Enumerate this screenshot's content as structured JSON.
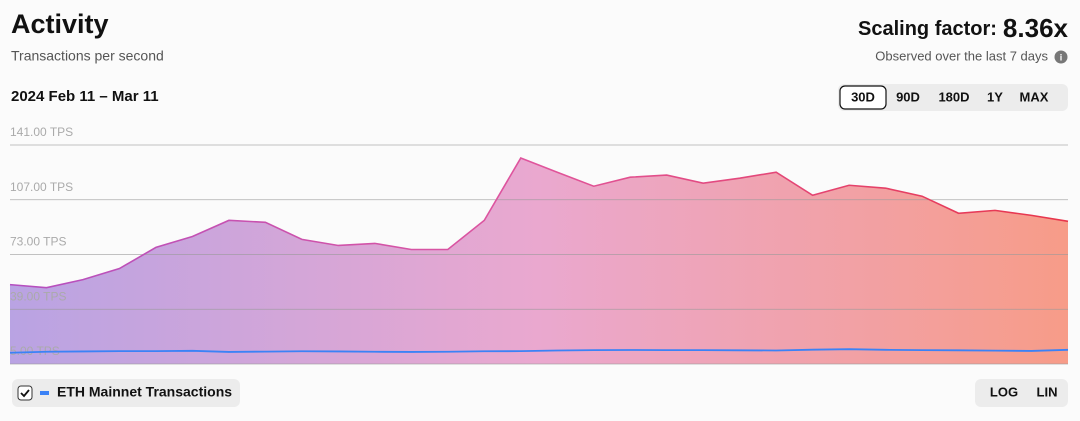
{
  "header": {
    "title": "Activity",
    "subtitle": "Transactions per second",
    "factor_label": "Scaling factor:",
    "factor_value": "8.36x",
    "factor_note": "Observed over the last 7 days",
    "date_range": "2024 Feb 11 – Mar 11"
  },
  "controls": {
    "ranges": [
      "30D",
      "90D",
      "180D",
      "1Y",
      "MAX"
    ],
    "active_range": "30D",
    "scales": [
      "LOG",
      "LIN"
    ]
  },
  "chart_data": {
    "type": "area",
    "categories": [
      null,
      null,
      null,
      null,
      null,
      null,
      null,
      null,
      null,
      null,
      null,
      null,
      null,
      null,
      null,
      null,
      null,
      null,
      null,
      null,
      null,
      null,
      null,
      null,
      null,
      null,
      null,
      null,
      null,
      null
    ],
    "series": [
      {
        "color": "#b44fc0",
        "end_color": "#e8354a",
        "fill": "#b9a3e3",
        "end_fill": "#f79c88",
        "values": [
          54.3,
          52.4,
          57.4,
          64.3,
          77.4,
          84.2,
          94.2,
          93,
          82.4,
          78.6,
          79.9,
          76.1,
          76.1,
          94.2,
          132.9,
          124.1,
          115.4,
          121,
          122.3,
          117.3,
          120.4,
          124.1,
          109.8,
          116,
          114.2,
          109.2,
          98.6,
          100.4,
          97.3,
          93.6
        ]
      },
      {
        "name": "ETH Mainnet Transactions",
        "color": "#3b82f6",
        "values": [
          12,
          12.6,
          12.8,
          13,
          13,
          13.2,
          12.5,
          12.7,
          12.9,
          12.8,
          12.6,
          12.5,
          12.6,
          12.9,
          13,
          13.4,
          13.6,
          13.7,
          13.6,
          13.6,
          13.5,
          13.4,
          13.9,
          14.2,
          13.8,
          13.6,
          13.5,
          13.3,
          13.1,
          13.8
        ]
      }
    ],
    "ylim": [
      5,
      141
    ],
    "yticks": [
      {
        "value": 5,
        "label": "5.00 TPS"
      },
      {
        "value": 39,
        "label": "39.00 TPS"
      },
      {
        "value": 73,
        "label": "73.00 TPS"
      },
      {
        "value": 107,
        "label": "107.00 TPS"
      },
      {
        "value": 141,
        "label": "141.00 TPS"
      }
    ],
    "grid": true
  }
}
